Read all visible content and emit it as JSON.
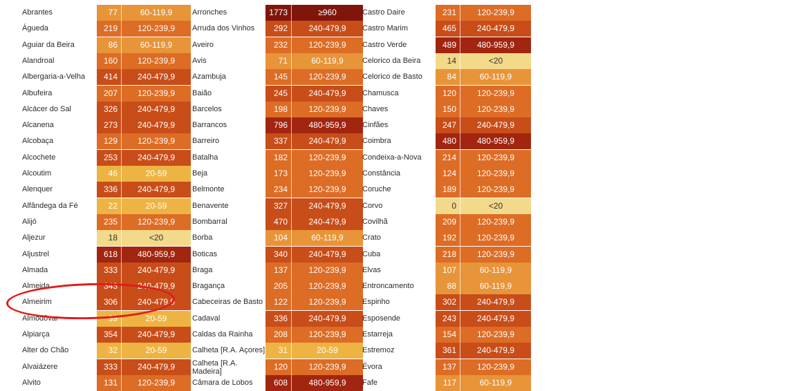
{
  "colors": {
    "lt20": "#f3d98a",
    "r20_59": "#eeb443",
    "r60_119": "#e89438",
    "r120_239": "#dd6c25",
    "r240_479": "#c84d19",
    "r480_959": "#a2250f",
    "ge960": "#80160b"
  },
  "columns": [
    [
      {
        "name": "Abrantes",
        "value": "77",
        "range": "60-119,9",
        "level": "r60_119"
      },
      {
        "name": "Águeda",
        "value": "219",
        "range": "120-239,9",
        "level": "r120_239"
      },
      {
        "name": "Aguiar da Beira",
        "value": "86",
        "range": "60-119,9",
        "level": "r60_119"
      },
      {
        "name": "Alandroal",
        "value": "160",
        "range": "120-239,9",
        "level": "r120_239"
      },
      {
        "name": "Albergaria-a-Velha",
        "value": "414",
        "range": "240-479,9",
        "level": "r240_479"
      },
      {
        "name": "Albufeira",
        "value": "207",
        "range": "120-239,9",
        "level": "r120_239"
      },
      {
        "name": "Alcácer do Sal",
        "value": "326",
        "range": "240-479,9",
        "level": "r240_479"
      },
      {
        "name": "Alcanena",
        "value": "273",
        "range": "240-479,9",
        "level": "r240_479"
      },
      {
        "name": "Alcobaça",
        "value": "129",
        "range": "120-239,9",
        "level": "r120_239"
      },
      {
        "name": "Alcochete",
        "value": "253",
        "range": "240-479,9",
        "level": "r240_479"
      },
      {
        "name": "Alcoutim",
        "value": "46",
        "range": "20-59",
        "level": "r20_59"
      },
      {
        "name": "Alenquer",
        "value": "336",
        "range": "240-479,9",
        "level": "r240_479"
      },
      {
        "name": "Alfândega da Fé",
        "value": "22",
        "range": "20-59",
        "level": "r20_59"
      },
      {
        "name": "Alijó",
        "value": "235",
        "range": "120-239,9",
        "level": "r120_239"
      },
      {
        "name": "Aljezur",
        "value": "18",
        "range": "<20",
        "level": "lt20"
      },
      {
        "name": "Aljustrel",
        "value": "618",
        "range": "480-959,9",
        "level": "r480_959"
      },
      {
        "name": "Almada",
        "value": "333",
        "range": "240-479,9",
        "level": "r240_479"
      },
      {
        "name": "Almeida",
        "value": "343",
        "range": "240-479,9",
        "level": "r240_479"
      },
      {
        "name": "Almeirim",
        "value": "306",
        "range": "240-479,9",
        "level": "r240_479"
      },
      {
        "name": "Almodôvar",
        "value": "39",
        "range": "20-59",
        "level": "r20_59"
      },
      {
        "name": "Alpiarça",
        "value": "354",
        "range": "240-479,9",
        "level": "r240_479"
      },
      {
        "name": "Alter do Chão",
        "value": "32",
        "range": "20-59",
        "level": "r20_59"
      },
      {
        "name": "Alvaiázere",
        "value": "333",
        "range": "240-479,9",
        "level": "r240_479"
      },
      {
        "name": "Alvito",
        "value": "131",
        "range": "120-239,9",
        "level": "r120_239"
      }
    ],
    [
      {
        "name": "Arronches",
        "value": "1773",
        "range": "≥960",
        "level": "ge960"
      },
      {
        "name": "Arruda dos Vinhos",
        "value": "292",
        "range": "240-479,9",
        "level": "r240_479"
      },
      {
        "name": "Aveiro",
        "value": "232",
        "range": "120-239,9",
        "level": "r120_239"
      },
      {
        "name": "Avis",
        "value": "71",
        "range": "60-119,9",
        "level": "r60_119"
      },
      {
        "name": "Azambuja",
        "value": "145",
        "range": "120-239,9",
        "level": "r120_239"
      },
      {
        "name": "Baião",
        "value": "245",
        "range": "240-479,9",
        "level": "r240_479"
      },
      {
        "name": "Barcelos",
        "value": "198",
        "range": "120-239,9",
        "level": "r120_239"
      },
      {
        "name": "Barrancos",
        "value": "796",
        "range": "480-959,9",
        "level": "r480_959"
      },
      {
        "name": "Barreiro",
        "value": "337",
        "range": "240-479,9",
        "level": "r240_479"
      },
      {
        "name": "Batalha",
        "value": "182",
        "range": "120-239,9",
        "level": "r120_239"
      },
      {
        "name": "Beja",
        "value": "173",
        "range": "120-239,9",
        "level": "r120_239"
      },
      {
        "name": "Belmonte",
        "value": "234",
        "range": "120-239,9",
        "level": "r120_239"
      },
      {
        "name": "Benavente",
        "value": "327",
        "range": "240-479,9",
        "level": "r240_479"
      },
      {
        "name": "Bombarral",
        "value": "470",
        "range": "240-479,9",
        "level": "r240_479"
      },
      {
        "name": "Borba",
        "value": "104",
        "range": "60-119,9",
        "level": "r60_119"
      },
      {
        "name": "Boticas",
        "value": "340",
        "range": "240-479,9",
        "level": "r240_479"
      },
      {
        "name": "Braga",
        "value": "137",
        "range": "120-239,9",
        "level": "r120_239"
      },
      {
        "name": "Bragança",
        "value": "205",
        "range": "120-239,9",
        "level": "r120_239"
      },
      {
        "name": "Cabeceiras de Basto",
        "value": "122",
        "range": "120-239,9",
        "level": "r120_239"
      },
      {
        "name": "Cadaval",
        "value": "336",
        "range": "240-479,9",
        "level": "r240_479"
      },
      {
        "name": "Caldas da Rainha",
        "value": "208",
        "range": "120-239,9",
        "level": "r120_239"
      },
      {
        "name": "Calheta [R.A. Açores]",
        "value": "31",
        "range": "20-59",
        "level": "r20_59"
      },
      {
        "name": "Calheta [R.A. Madeira]",
        "value": "120",
        "range": "120-239,9",
        "level": "r120_239",
        "two": true
      },
      {
        "name": "Câmara de Lobos",
        "value": "608",
        "range": "480-959,9",
        "level": "r480_959"
      }
    ],
    [
      {
        "name": "Castro Daire",
        "value": "231",
        "range": "120-239,9",
        "level": "r120_239"
      },
      {
        "name": "Castro Marim",
        "value": "465",
        "range": "240-479,9",
        "level": "r240_479"
      },
      {
        "name": "Castro Verde",
        "value": "489",
        "range": "480-959,9",
        "level": "r480_959"
      },
      {
        "name": "Celorico da Beira",
        "value": "14",
        "range": "<20",
        "level": "lt20"
      },
      {
        "name": "Celorico de Basto",
        "value": "84",
        "range": "60-119,9",
        "level": "r60_119"
      },
      {
        "name": "Chamusca",
        "value": "120",
        "range": "120-239,9",
        "level": "r120_239"
      },
      {
        "name": "Chaves",
        "value": "150",
        "range": "120-239,9",
        "level": "r120_239"
      },
      {
        "name": "Cinfães",
        "value": "247",
        "range": "240-479,9",
        "level": "r240_479"
      },
      {
        "name": "Coimbra",
        "value": "480",
        "range": "480-959,9",
        "level": "r480_959"
      },
      {
        "name": "Condeixa-a-Nova",
        "value": "214",
        "range": "120-239,9",
        "level": "r120_239"
      },
      {
        "name": "Constância",
        "value": "124",
        "range": "120-239,9",
        "level": "r120_239"
      },
      {
        "name": "Coruche",
        "value": "189",
        "range": "120-239,9",
        "level": "r120_239"
      },
      {
        "name": "Corvo",
        "value": "0",
        "range": "<20",
        "level": "lt20"
      },
      {
        "name": "Covilhã",
        "value": "209",
        "range": "120-239,9",
        "level": "r120_239"
      },
      {
        "name": "Crato",
        "value": "192",
        "range": "120-239,9",
        "level": "r120_239"
      },
      {
        "name": "Cuba",
        "value": "218",
        "range": "120-239,9",
        "level": "r120_239"
      },
      {
        "name": "Elvas",
        "value": "107",
        "range": "60-119,9",
        "level": "r60_119"
      },
      {
        "name": "Entroncamento",
        "value": "88",
        "range": "60-119,9",
        "level": "r60_119"
      },
      {
        "name": "Espinho",
        "value": "302",
        "range": "240-479,9",
        "level": "r240_479"
      },
      {
        "name": "Esposende",
        "value": "243",
        "range": "240-479,9",
        "level": "r240_479"
      },
      {
        "name": "Estarreja",
        "value": "154",
        "range": "120-239,9",
        "level": "r120_239"
      },
      {
        "name": "Estremoz",
        "value": "361",
        "range": "240-479,9",
        "level": "r240_479"
      },
      {
        "name": "Évora",
        "value": "137",
        "range": "120-239,9",
        "level": "r120_239"
      },
      {
        "name": "Fafe",
        "value": "117",
        "range": "60-119,9",
        "level": "r60_119"
      }
    ]
  ]
}
